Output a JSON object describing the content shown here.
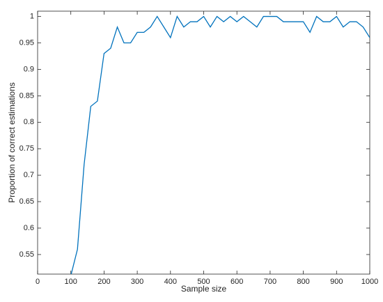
{
  "chart_data": {
    "type": "line",
    "x_label": "Sample size",
    "y_label": "Proportion of correct estimations",
    "x": [
      100,
      120,
      140,
      160,
      180,
      200,
      220,
      240,
      260,
      280,
      300,
      320,
      340,
      360,
      380,
      400,
      420,
      440,
      460,
      480,
      500,
      520,
      540,
      560,
      580,
      600,
      620,
      640,
      660,
      680,
      700,
      720,
      740,
      760,
      780,
      800,
      820,
      840,
      860,
      880,
      900,
      920,
      940,
      960,
      980,
      1000
    ],
    "series": [
      {
        "color": "#0072bd",
        "values": [
          0.51,
          0.56,
          0.72,
          0.83,
          0.84,
          0.93,
          0.94,
          0.98,
          0.95,
          0.95,
          0.97,
          0.97,
          0.98,
          1.0,
          0.98,
          0.96,
          1.0,
          0.98,
          0.99,
          0.99,
          1.0,
          0.98,
          1.0,
          0.99,
          1.0,
          0.99,
          1.0,
          0.99,
          0.98,
          1.0,
          1.0,
          1.0,
          0.99,
          0.99,
          0.99,
          0.99,
          0.97,
          1.0,
          0.99,
          0.99,
          1.0,
          0.98,
          0.99,
          0.99,
          0.98,
          0.96
        ]
      }
    ],
    "xlim": [
      0,
      1000
    ],
    "xticks": [
      0,
      100,
      200,
      300,
      400,
      500,
      600,
      700,
      800,
      900,
      1000
    ],
    "ylim": [
      0.513,
      1.01
    ],
    "yticks": [
      0.55,
      0.6,
      0.65,
      0.7,
      0.75,
      0.8,
      0.85,
      0.9,
      0.95,
      1
    ]
  }
}
